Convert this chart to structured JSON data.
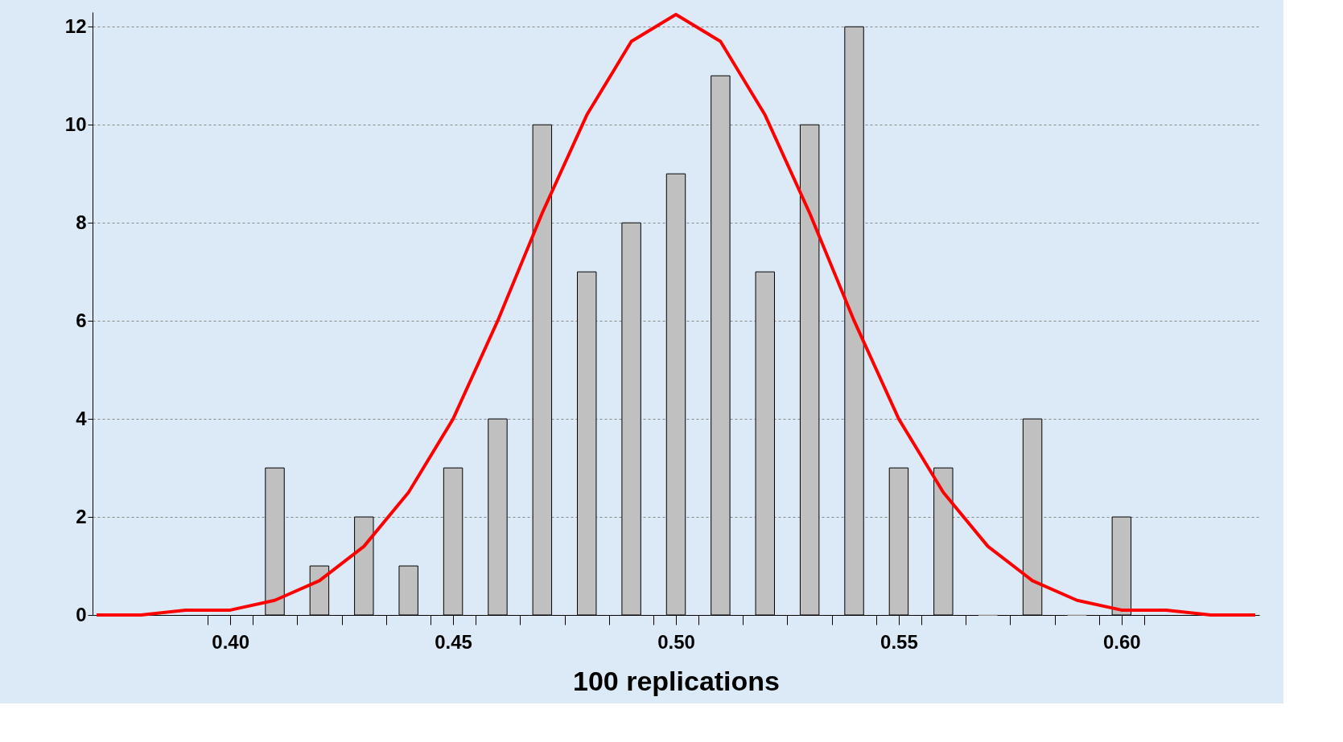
{
  "chart_data": {
    "type": "bar",
    "xlabel": "100 replications",
    "x": [
      0.41,
      0.42,
      0.43,
      0.44,
      0.45,
      0.46,
      0.47,
      0.48,
      0.49,
      0.5,
      0.51,
      0.52,
      0.53,
      0.54,
      0.55,
      0.56,
      0.57,
      0.58,
      0.59,
      0.6
    ],
    "series": [
      {
        "color": "#c0c0c0",
        "values": [
          3,
          1,
          2,
          1,
          3,
          4,
          10,
          7,
          8,
          9,
          11,
          7,
          10,
          12,
          3,
          3,
          0,
          4,
          0,
          2
        ]
      },
      {
        "type": "line",
        "color": "#ff0000",
        "x": [
          0.37,
          0.38,
          0.39,
          0.4,
          0.41,
          0.42,
          0.43,
          0.44,
          0.45,
          0.46,
          0.47,
          0.48,
          0.49,
          0.5,
          0.51,
          0.52,
          0.53,
          0.54,
          0.55,
          0.56,
          0.57,
          0.58,
          0.59,
          0.6,
          0.61,
          0.62,
          0.63
        ],
        "values": [
          0.0,
          0.0,
          0.1,
          0.1,
          0.3,
          0.7,
          1.4,
          2.5,
          4.0,
          6.0,
          8.2,
          10.2,
          11.7,
          12.25,
          11.7,
          10.2,
          8.2,
          6.0,
          4.0,
          2.5,
          1.4,
          0.7,
          0.3,
          0.1,
          0.1,
          0.0,
          0.0
        ]
      }
    ],
    "xlim": [
      0.37,
      0.63
    ],
    "xticks": [
      {
        "value": 0.395,
        "label": null
      },
      {
        "value": 0.4,
        "label": "0.40"
      },
      {
        "value": 0.405,
        "label": null
      },
      {
        "value": 0.415,
        "label": null
      },
      {
        "value": 0.425,
        "label": null
      },
      {
        "value": 0.435,
        "label": null
      },
      {
        "value": 0.445,
        "label": null
      },
      {
        "value": 0.45,
        "label": "0.45"
      },
      {
        "value": 0.455,
        "label": null
      },
      {
        "value": 0.465,
        "label": null
      },
      {
        "value": 0.475,
        "label": null
      },
      {
        "value": 0.485,
        "label": null
      },
      {
        "value": 0.495,
        "label": null
      },
      {
        "value": 0.5,
        "label": "0.50"
      },
      {
        "value": 0.505,
        "label": null
      },
      {
        "value": 0.515,
        "label": null
      },
      {
        "value": 0.525,
        "label": null
      },
      {
        "value": 0.535,
        "label": null
      },
      {
        "value": 0.545,
        "label": null
      },
      {
        "value": 0.55,
        "label": "0.55"
      },
      {
        "value": 0.555,
        "label": null
      },
      {
        "value": 0.565,
        "label": null
      },
      {
        "value": 0.575,
        "label": null
      },
      {
        "value": 0.585,
        "label": null
      },
      {
        "value": 0.595,
        "label": null
      },
      {
        "value": 0.6,
        "label": "0.60"
      },
      {
        "value": 0.605,
        "label": null
      }
    ],
    "ylim": [
      0,
      12.3
    ],
    "yticks": [
      0,
      2,
      4,
      6,
      8,
      10,
      12
    ],
    "grid": "y",
    "legend": false
  }
}
